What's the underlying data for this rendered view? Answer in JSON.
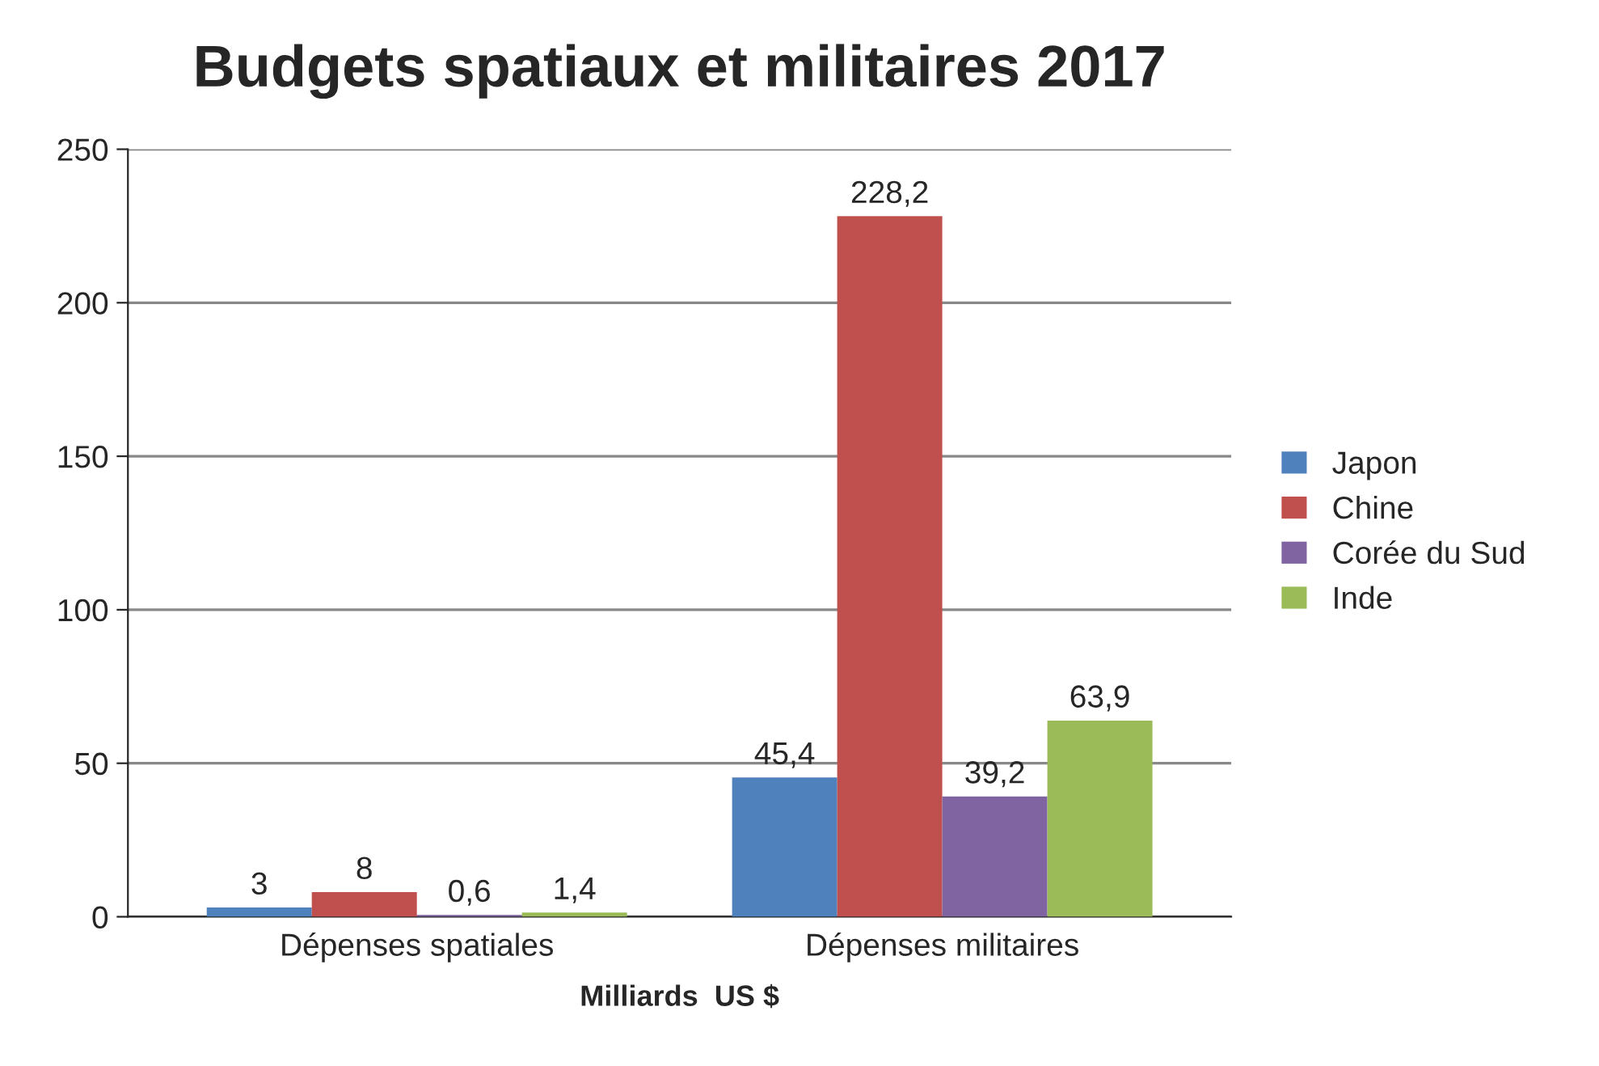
{
  "chart_data": {
    "type": "bar",
    "title": "Budgets spatiaux et militaires 2017",
    "xlabel": "Milliards  US $",
    "categories": [
      "Dépenses spatiales",
      "Dépenses militaires"
    ],
    "series": [
      {
        "name": "Japon",
        "color": "#4f81bd",
        "values": [
          3,
          45.4
        ],
        "value_labels": [
          "3",
          "45,4"
        ]
      },
      {
        "name": "Chine",
        "color": "#c0504d",
        "values": [
          8,
          228.2
        ],
        "value_labels": [
          "8",
          "228,2"
        ]
      },
      {
        "name": "Corée du Sud",
        "color": "#8064a2",
        "values": [
          0.6,
          39.2
        ],
        "value_labels": [
          "0,6",
          "39,2"
        ]
      },
      {
        "name": "Inde",
        "color": "#9bbb59",
        "values": [
          1.4,
          63.9
        ],
        "value_labels": [
          "1,4",
          "63,9"
        ]
      }
    ],
    "ylim": [
      0,
      250
    ],
    "yticks": [
      0,
      50,
      100,
      150,
      200,
      250
    ],
    "grid": "y",
    "legend": "right"
  }
}
